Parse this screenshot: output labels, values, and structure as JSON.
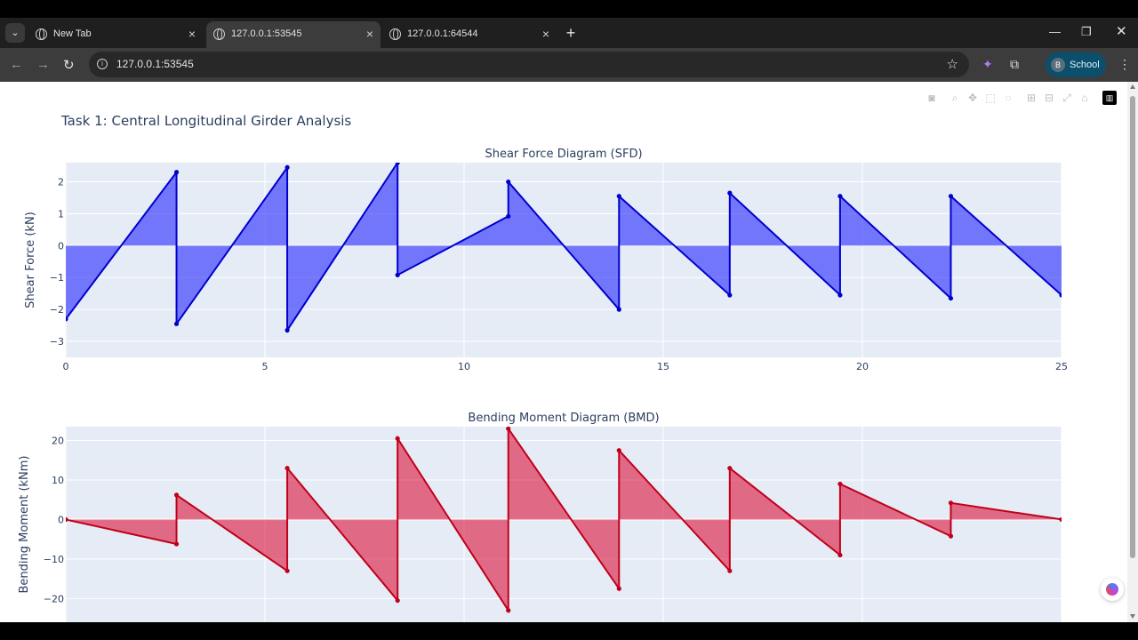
{
  "browser": {
    "tabs": [
      {
        "label": "New Tab",
        "active": false
      },
      {
        "label": "127.0.0.1:53545",
        "active": true
      },
      {
        "label": "127.0.0.1:64544",
        "active": false
      }
    ],
    "url": "127.0.0.1:53545",
    "profile_initial": "B",
    "profile_label": "School"
  },
  "page": {
    "heading": "Task 1: Central Longitudinal Girder Analysis"
  },
  "colors": {
    "sfd_line": "#0000cd",
    "sfd_fill": "rgba(0,0,255,0.5)",
    "bmd_line": "#c0001a",
    "bmd_fill": "rgba(220,20,60,0.6)",
    "plot_bg": "#e5ecf6"
  },
  "chart_data": [
    {
      "type": "area",
      "title": "Shear Force Diagram (SFD)",
      "xlabel": "",
      "ylabel": "Shear Force (kN)",
      "xlim": [
        0,
        25
      ],
      "ylim": [
        -3.5,
        2.6
      ],
      "xticks": [
        0,
        5,
        10,
        15,
        20,
        25
      ],
      "yticks": [
        -3,
        -2,
        -1,
        0,
        1,
        2
      ],
      "grid": true,
      "series": [
        {
          "x": [
            0,
            2.78,
            2.78,
            5.56,
            5.56,
            8.33,
            8.33,
            11.11,
            11.11,
            13.89,
            13.89,
            16.67,
            16.67,
            19.44,
            19.44,
            22.22,
            22.22,
            25.0
          ],
          "y": [
            -2.3,
            2.3,
            -2.45,
            2.45,
            -2.65,
            2.6,
            -0.92,
            0.92,
            2.0,
            -2.0,
            1.55,
            -1.55,
            1.65,
            -1.55,
            1.55,
            -1.65,
            1.55,
            -1.55
          ]
        }
      ]
    },
    {
      "type": "area",
      "title": "Bending Moment Diagram (BMD)",
      "xlabel": "",
      "ylabel": "Bending Moment (kNm)",
      "xlim": [
        0,
        25
      ],
      "ylim": [
        -26,
        23.5
      ],
      "xticks": [
        0,
        5,
        10,
        15,
        20,
        25
      ],
      "yticks": [
        -20,
        -10,
        0,
        10,
        20
      ],
      "grid": true,
      "series": [
        {
          "x": [
            0,
            2.78,
            2.78,
            5.56,
            5.56,
            8.33,
            8.33,
            11.11,
            11.11,
            13.89,
            13.89,
            16.67,
            16.67,
            19.44,
            19.44,
            22.22,
            22.22,
            25.0
          ],
          "y": [
            0,
            -6.2,
            6.2,
            -13.0,
            13.0,
            -20.5,
            20.5,
            -23.0,
            23.0,
            -17.5,
            17.5,
            -13.0,
            13.0,
            -9.0,
            9.0,
            -4.2,
            4.2,
            0
          ]
        }
      ]
    }
  ]
}
